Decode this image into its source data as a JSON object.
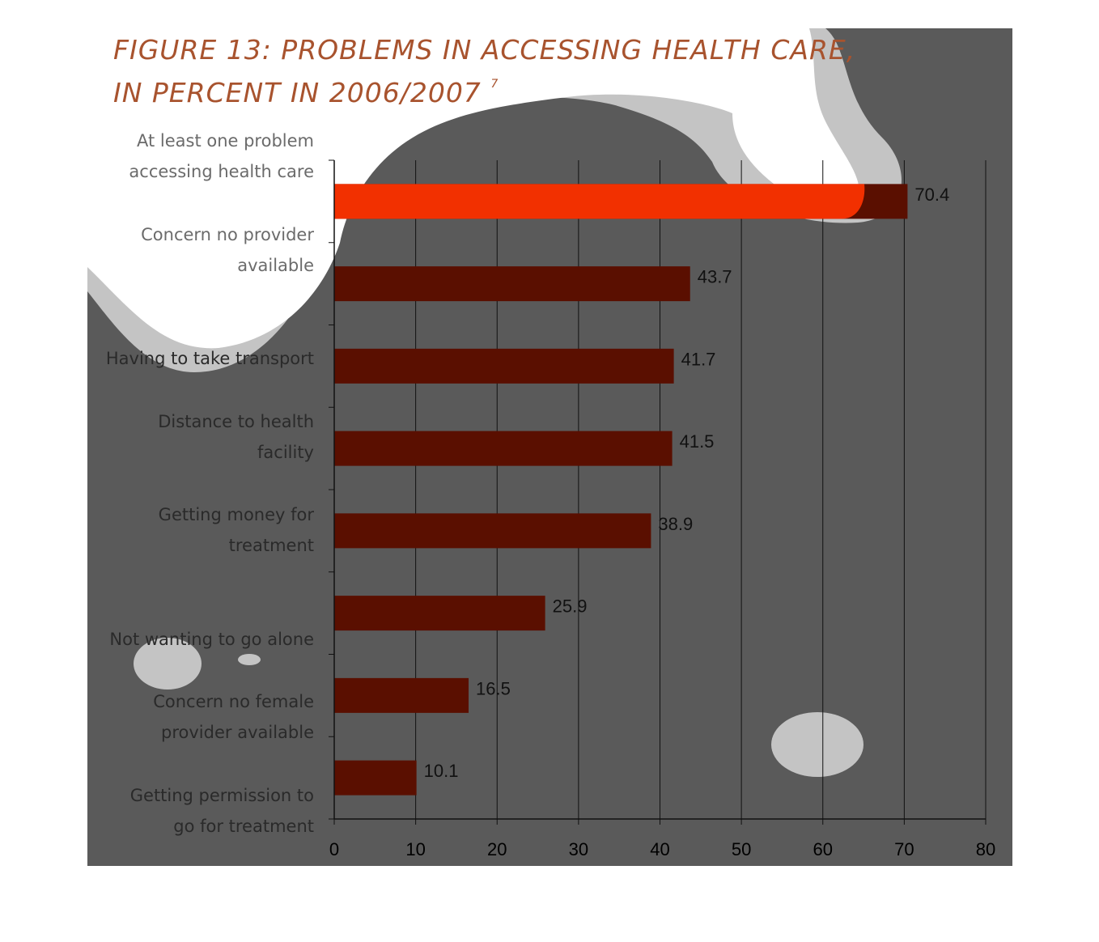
{
  "figure": {
    "title_line1": "FIGURE 13:  PROBLEMS IN ACCESSING HEALTH CARE,",
    "title_line2": "IN PERCENT  IN 2006/2007",
    "footnote_marker": "7"
  },
  "colors": {
    "bar": "#5a0f00",
    "highlight_bar": "#ff3300",
    "panel": "#5a5a5a",
    "title": "#a8532e"
  },
  "chart_data": {
    "type": "bar",
    "orientation": "horizontal",
    "title": "FIGURE 13:  PROBLEMS IN ACCESSING HEALTH CARE, IN PERCENT  IN 2006/2007",
    "xlabel": "",
    "ylabel": "",
    "xlim": [
      0,
      80
    ],
    "xticks": [
      0,
      10,
      20,
      30,
      40,
      50,
      60,
      70,
      80
    ],
    "grid": "vertical",
    "categories": [
      "At least one problem\naccessing health care",
      "Concern no provider\navailable",
      "Having to take transport",
      "Distance to health\nfacility",
      "Getting money for\ntreatment",
      "Not wanting to go alone",
      "Concern no female\nprovider available",
      "Getting permission to\ngo for treatment"
    ],
    "values": [
      70.4,
      43.7,
      41.7,
      41.5,
      38.9,
      25.9,
      16.5,
      10.1
    ],
    "value_labels": [
      "70.4",
      "43.7",
      "41.7",
      "41.5",
      "38.9",
      "25.9",
      "16.5",
      "10.1"
    ]
  }
}
